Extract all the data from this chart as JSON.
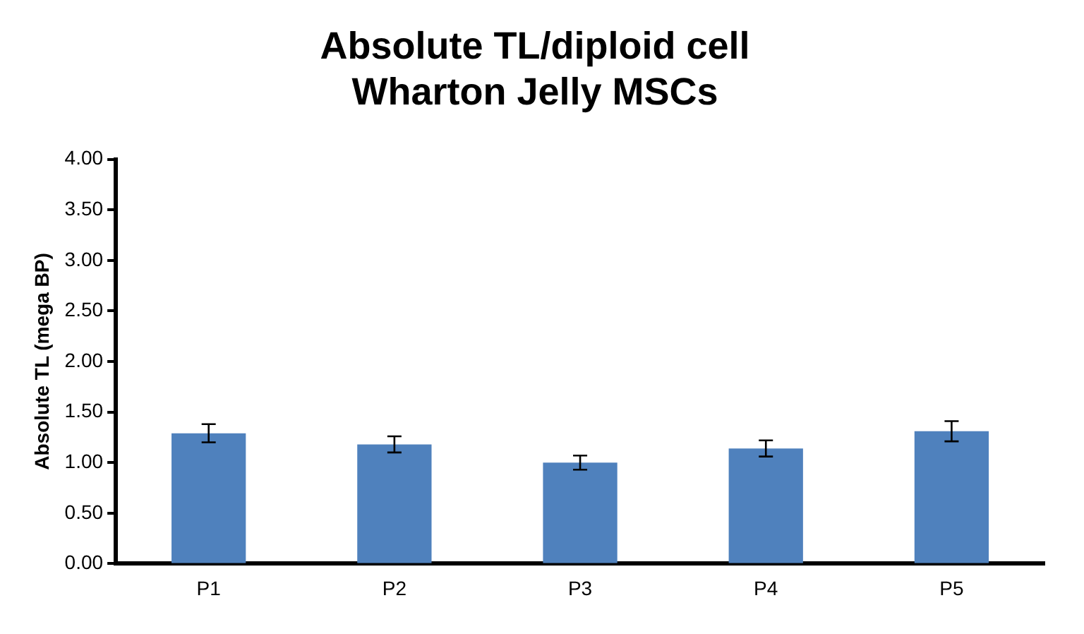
{
  "chart_data": {
    "type": "bar",
    "title": "Absolute TL/diploid cell\nWharton Jelly MSCs",
    "ylabel": "Absolute TL (mega BP)",
    "categories": [
      "P1",
      "P2",
      "P3",
      "P4",
      "P5"
    ],
    "values": [
      1.29,
      1.18,
      1.0,
      1.14,
      1.31
    ],
    "errors": [
      0.09,
      0.08,
      0.07,
      0.08,
      0.1
    ],
    "color": "#4f81bd",
    "ylim": [
      0,
      4
    ],
    "yticks": [
      {
        "value": 0,
        "label": "0.00"
      },
      {
        "value": 0.5,
        "label": "0.50"
      },
      {
        "value": 1,
        "label": "1.00"
      },
      {
        "value": 1.5,
        "label": "1.50"
      },
      {
        "value": 2,
        "label": "2.00"
      },
      {
        "value": 2.5,
        "label": "2.50"
      },
      {
        "value": 3,
        "label": "3.00"
      },
      {
        "value": 3.5,
        "label": "3.50"
      },
      {
        "value": 4,
        "label": "4.00"
      }
    ],
    "grid": false,
    "legend": false
  }
}
